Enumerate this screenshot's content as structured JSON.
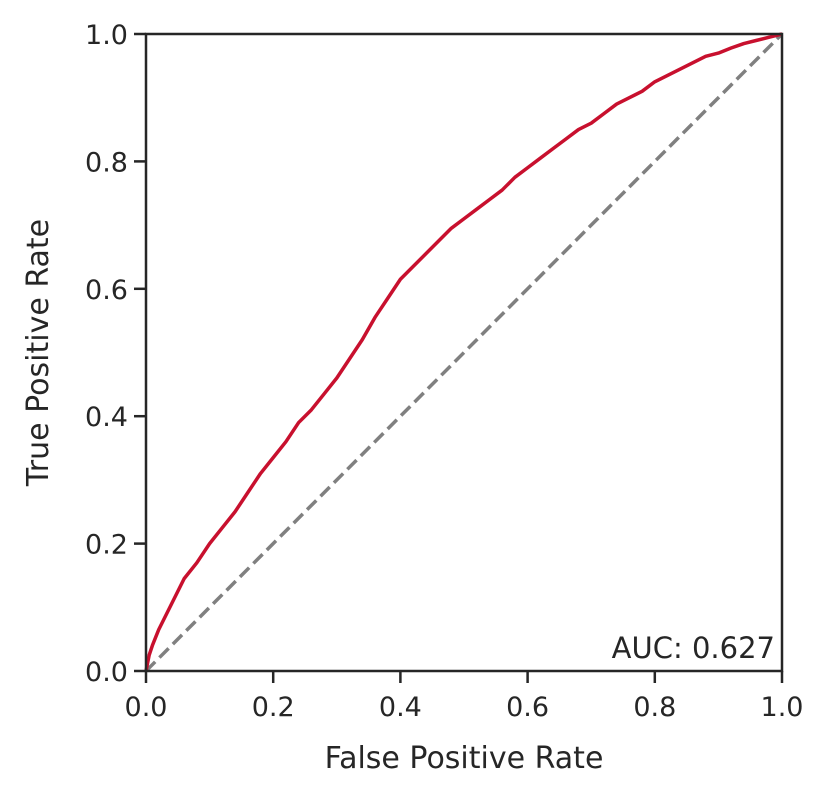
{
  "chart_data": {
    "type": "line",
    "title": "",
    "xlabel": "False Positive Rate",
    "ylabel": "True Positive Rate",
    "xlim": [
      0.0,
      1.0
    ],
    "ylim": [
      0.0,
      1.0
    ],
    "xticks": [
      "0.0",
      "0.2",
      "0.4",
      "0.6",
      "0.8",
      "1.0"
    ],
    "yticks": [
      "0.0",
      "0.2",
      "0.4",
      "0.6",
      "0.8",
      "1.0"
    ],
    "grid": false,
    "annotation": "AUC: 0.627",
    "series": [
      {
        "color": "#c8102e",
        "style": "solid",
        "x": [
          0.0,
          0.005,
          0.01,
          0.02,
          0.03,
          0.04,
          0.05,
          0.06,
          0.08,
          0.1,
          0.12,
          0.14,
          0.16,
          0.18,
          0.2,
          0.22,
          0.24,
          0.26,
          0.28,
          0.3,
          0.32,
          0.34,
          0.36,
          0.38,
          0.4,
          0.42,
          0.44,
          0.46,
          0.48,
          0.5,
          0.52,
          0.54,
          0.56,
          0.58,
          0.6,
          0.62,
          0.64,
          0.66,
          0.68,
          0.7,
          0.72,
          0.74,
          0.76,
          0.78,
          0.8,
          0.82,
          0.84,
          0.86,
          0.88,
          0.9,
          0.92,
          0.94,
          0.96,
          0.98,
          1.0
        ],
        "y": [
          0.0,
          0.025,
          0.04,
          0.065,
          0.085,
          0.105,
          0.125,
          0.145,
          0.17,
          0.2,
          0.225,
          0.25,
          0.28,
          0.31,
          0.335,
          0.36,
          0.39,
          0.41,
          0.435,
          0.46,
          0.49,
          0.52,
          0.555,
          0.585,
          0.615,
          0.635,
          0.655,
          0.675,
          0.695,
          0.71,
          0.725,
          0.74,
          0.755,
          0.775,
          0.79,
          0.805,
          0.82,
          0.835,
          0.85,
          0.86,
          0.875,
          0.89,
          0.9,
          0.91,
          0.925,
          0.935,
          0.945,
          0.955,
          0.965,
          0.97,
          0.978,
          0.985,
          0.99,
          0.995,
          1.0
        ]
      },
      {
        "color": "#808080",
        "style": "dashed",
        "x": [
          0.0,
          1.0
        ],
        "y": [
          0.0,
          1.0
        ]
      }
    ]
  }
}
